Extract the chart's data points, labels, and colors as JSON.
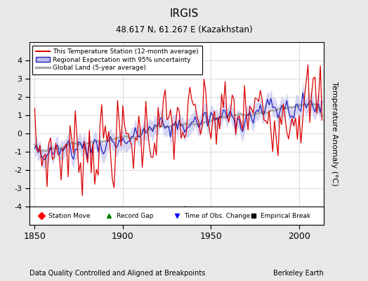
{
  "title": "IRGIS",
  "subtitle": "48.617 N, 61.267 E (Kazakhstan)",
  "ylabel": "Temperature Anomaly (°C)",
  "xlabel_left": "Data Quality Controlled and Aligned at Breakpoints",
  "xlabel_right": "Berkeley Earth",
  "ylim": [
    -5,
    5
  ],
  "xlim": [
    1847,
    2014
  ],
  "xticks": [
    1850,
    1900,
    1950,
    2000
  ],
  "yticks": [
    -4,
    -3,
    -2,
    -1,
    0,
    1,
    2,
    3,
    4
  ],
  "bg_color": "#e8e8e8",
  "plot_bg_color": "#ffffff",
  "red_color": "#dd0000",
  "blue_color": "#2222bb",
  "blue_fill_color": "#bbbbee",
  "gray_color": "#aaaaaa",
  "legend_items": [
    "This Temperature Station (12-month average)",
    "Regional Expectation with 95% uncertainty",
    "Global Land (5-year average)"
  ],
  "start_year": 1850,
  "end_year": 2013,
  "record_gap_x": 1935,
  "figsize": [
    5.24,
    4.0
  ],
  "dpi": 100
}
